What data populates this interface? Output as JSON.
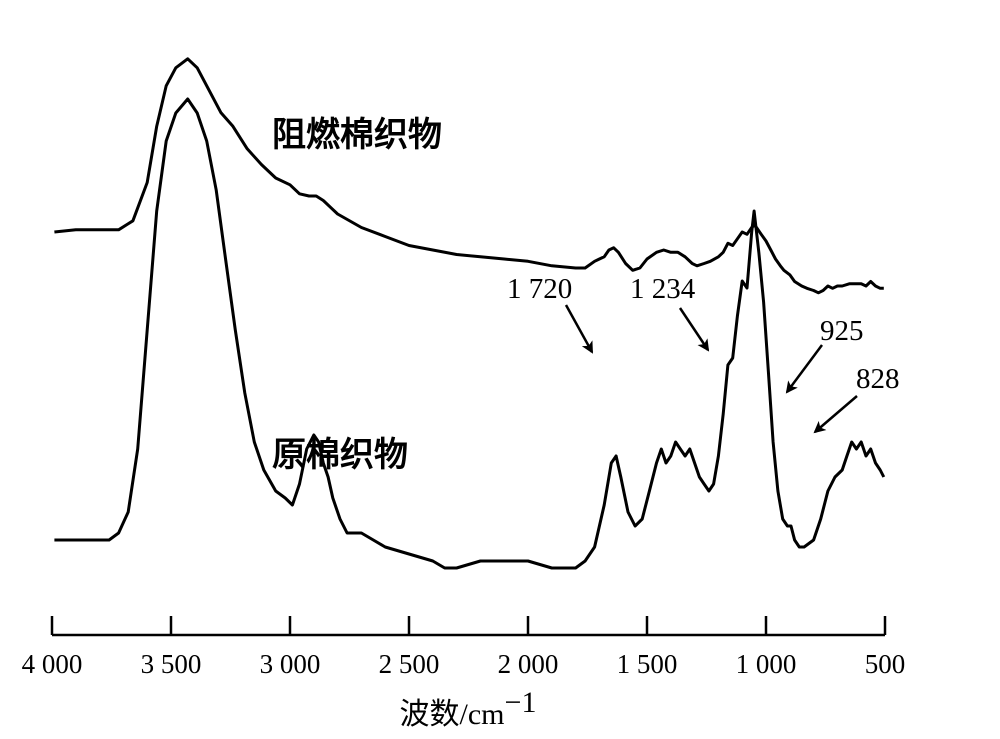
{
  "chart_data": {
    "type": "line",
    "xlabel": "波数/cm⁻¹",
    "xlabel_main": "波数",
    "xlabel_unit": "/cm",
    "xlabel_sup": "−1",
    "xlim": [
      4000,
      500
    ],
    "x_reversed": true,
    "y_axis_shown": false,
    "grid": false,
    "ticks": [
      4000,
      3500,
      3000,
      2500,
      2000,
      1500,
      1000,
      500
    ],
    "tick_labels": [
      "4 000",
      "3 500",
      "3 000",
      "2 500",
      "2 000",
      "1 500",
      "1 000",
      "500"
    ],
    "series": [
      {
        "name": "阻燃棉织物",
        "color": "#000000",
        "points": [
          [
            3990,
            0.23
          ],
          [
            3900,
            0.24
          ],
          [
            3800,
            0.24
          ],
          [
            3720,
            0.24
          ],
          [
            3660,
            0.28
          ],
          [
            3600,
            0.45
          ],
          [
            3560,
            0.7
          ],
          [
            3520,
            0.88
          ],
          [
            3480,
            0.96
          ],
          [
            3430,
            1.0
          ],
          [
            3390,
            0.96
          ],
          [
            3340,
            0.86
          ],
          [
            3290,
            0.76
          ],
          [
            3240,
            0.7
          ],
          [
            3180,
            0.6
          ],
          [
            3120,
            0.53
          ],
          [
            3060,
            0.47
          ],
          [
            3000,
            0.44
          ],
          [
            2960,
            0.4
          ],
          [
            2920,
            0.39
          ],
          [
            2890,
            0.39
          ],
          [
            2860,
            0.37
          ],
          [
            2830,
            0.34
          ],
          [
            2800,
            0.31
          ],
          [
            2700,
            0.25
          ],
          [
            2600,
            0.21
          ],
          [
            2500,
            0.17
          ],
          [
            2400,
            0.15
          ],
          [
            2300,
            0.13
          ],
          [
            2200,
            0.12
          ],
          [
            2100,
            0.11
          ],
          [
            2000,
            0.1
          ],
          [
            1900,
            0.08
          ],
          [
            1800,
            0.07
          ],
          [
            1760,
            0.07
          ],
          [
            1720,
            0.1
          ],
          [
            1700,
            0.11
          ],
          [
            1680,
            0.12
          ],
          [
            1660,
            0.15
          ],
          [
            1640,
            0.16
          ],
          [
            1620,
            0.14
          ],
          [
            1590,
            0.09
          ],
          [
            1560,
            0.06
          ],
          [
            1530,
            0.07
          ],
          [
            1500,
            0.11
          ],
          [
            1460,
            0.14
          ],
          [
            1430,
            0.15
          ],
          [
            1400,
            0.14
          ],
          [
            1370,
            0.14
          ],
          [
            1340,
            0.12
          ],
          [
            1310,
            0.09
          ],
          [
            1290,
            0.08
          ],
          [
            1260,
            0.09
          ],
          [
            1234,
            0.1
          ],
          [
            1200,
            0.12
          ],
          [
            1180,
            0.14
          ],
          [
            1160,
            0.18
          ],
          [
            1140,
            0.17
          ],
          [
            1120,
            0.2
          ],
          [
            1100,
            0.23
          ],
          [
            1080,
            0.22
          ],
          [
            1060,
            0.25
          ],
          [
            1050,
            0.26
          ],
          [
            1040,
            0.25
          ],
          [
            1020,
            0.22
          ],
          [
            1000,
            0.19
          ],
          [
            980,
            0.15
          ],
          [
            960,
            0.11
          ],
          [
            940,
            0.08
          ],
          [
            925,
            0.06
          ],
          [
            900,
            0.04
          ],
          [
            880,
            0.01
          ],
          [
            850,
            -0.01
          ],
          [
            828,
            -0.02
          ],
          [
            800,
            -0.03
          ],
          [
            780,
            -0.04
          ],
          [
            760,
            -0.03
          ],
          [
            740,
            -0.01
          ],
          [
            720,
            -0.02
          ],
          [
            700,
            -0.01
          ],
          [
            680,
            -0.01
          ],
          [
            650,
            0.0
          ],
          [
            620,
            0.0
          ],
          [
            600,
            0.0
          ],
          [
            580,
            -0.01
          ],
          [
            560,
            0.01
          ],
          [
            540,
            -0.01
          ],
          [
            520,
            -0.02
          ],
          [
            505,
            -0.02
          ]
        ]
      },
      {
        "name": "原棉织物",
        "color": "#000000",
        "points": [
          [
            3990,
            -0.3
          ],
          [
            3900,
            -0.3
          ],
          [
            3800,
            -0.3
          ],
          [
            3760,
            -0.3
          ],
          [
            3720,
            -0.29
          ],
          [
            3680,
            -0.26
          ],
          [
            3640,
            -0.17
          ],
          [
            3600,
            0.0
          ],
          [
            3560,
            0.17
          ],
          [
            3520,
            0.27
          ],
          [
            3480,
            0.31
          ],
          [
            3430,
            0.33
          ],
          [
            3390,
            0.31
          ],
          [
            3350,
            0.27
          ],
          [
            3310,
            0.2
          ],
          [
            3270,
            0.1
          ],
          [
            3230,
            0.0
          ],
          [
            3190,
            -0.09
          ],
          [
            3150,
            -0.16
          ],
          [
            3110,
            -0.2
          ],
          [
            3060,
            -0.23
          ],
          [
            3020,
            -0.24
          ],
          [
            2990,
            -0.25
          ],
          [
            2960,
            -0.22
          ],
          [
            2930,
            -0.17
          ],
          [
            2900,
            -0.15
          ],
          [
            2880,
            -0.16
          ],
          [
            2860,
            -0.19
          ],
          [
            2840,
            -0.21
          ],
          [
            2820,
            -0.24
          ],
          [
            2790,
            -0.27
          ],
          [
            2760,
            -0.29
          ],
          [
            2700,
            -0.29
          ],
          [
            2650,
            -0.3
          ],
          [
            2600,
            -0.31
          ],
          [
            2500,
            -0.32
          ],
          [
            2400,
            -0.33
          ],
          [
            2350,
            -0.34
          ],
          [
            2300,
            -0.34
          ],
          [
            2200,
            -0.33
          ],
          [
            2100,
            -0.33
          ],
          [
            2000,
            -0.33
          ],
          [
            1900,
            -0.34
          ],
          [
            1800,
            -0.34
          ],
          [
            1760,
            -0.33
          ],
          [
            1720,
            -0.31
          ],
          [
            1680,
            -0.25
          ],
          [
            1650,
            -0.19
          ],
          [
            1630,
            -0.18
          ],
          [
            1610,
            -0.21
          ],
          [
            1580,
            -0.26
          ],
          [
            1550,
            -0.28
          ],
          [
            1520,
            -0.27
          ],
          [
            1490,
            -0.23
          ],
          [
            1460,
            -0.19
          ],
          [
            1440,
            -0.17
          ],
          [
            1420,
            -0.19
          ],
          [
            1400,
            -0.18
          ],
          [
            1380,
            -0.16
          ],
          [
            1360,
            -0.17
          ],
          [
            1340,
            -0.18
          ],
          [
            1320,
            -0.17
          ],
          [
            1300,
            -0.19
          ],
          [
            1280,
            -0.21
          ],
          [
            1260,
            -0.22
          ],
          [
            1240,
            -0.23
          ],
          [
            1220,
            -0.22
          ],
          [
            1200,
            -0.18
          ],
          [
            1180,
            -0.12
          ],
          [
            1160,
            -0.05
          ],
          [
            1140,
            -0.04
          ],
          [
            1120,
            0.02
          ],
          [
            1100,
            0.07
          ],
          [
            1080,
            0.06
          ],
          [
            1060,
            0.14
          ],
          [
            1050,
            0.17
          ],
          [
            1040,
            0.14
          ],
          [
            1030,
            0.11
          ],
          [
            1010,
            0.04
          ],
          [
            990,
            -0.06
          ],
          [
            970,
            -0.16
          ],
          [
            950,
            -0.23
          ],
          [
            930,
            -0.27
          ],
          [
            910,
            -0.28
          ],
          [
            895,
            -0.28
          ],
          [
            880,
            -0.3
          ],
          [
            860,
            -0.31
          ],
          [
            840,
            -0.31
          ],
          [
            800,
            -0.3
          ],
          [
            770,
            -0.27
          ],
          [
            740,
            -0.23
          ],
          [
            710,
            -0.21
          ],
          [
            680,
            -0.2
          ],
          [
            660,
            -0.18
          ],
          [
            640,
            -0.16
          ],
          [
            620,
            -0.17
          ],
          [
            600,
            -0.16
          ],
          [
            580,
            -0.18
          ],
          [
            560,
            -0.17
          ],
          [
            540,
            -0.19
          ],
          [
            520,
            -0.2
          ],
          [
            505,
            -0.21
          ]
        ]
      }
    ],
    "annotations": [
      {
        "label": "1 720",
        "x": 1720,
        "series": "阻燃棉织物"
      },
      {
        "label": "1 234",
        "x": 1234,
        "series": "阻燃棉织物"
      },
      {
        "label": "925",
        "x": 925,
        "series": "阻燃棉织物"
      },
      {
        "label": "828",
        "x": 828,
        "series": "阻燃棉织物"
      }
    ]
  }
}
